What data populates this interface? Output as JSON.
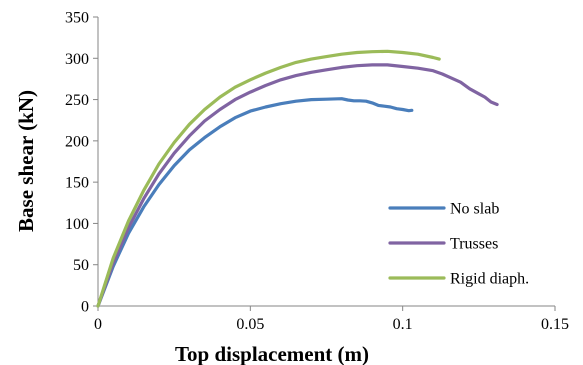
{
  "chart_data": {
    "type": "line",
    "title": "",
    "xlabel": "Top displacement (m)",
    "ylabel": "Base shear (kN)",
    "xlim": [
      0,
      0.15
    ],
    "ylim": [
      0,
      350
    ],
    "xticks": [
      0,
      0.05,
      0.1,
      0.15
    ],
    "xtick_labels": [
      "0",
      "0.05",
      "0.1",
      "0.15"
    ],
    "yticks": [
      0,
      50,
      100,
      150,
      200,
      250,
      300,
      350
    ],
    "ytick_labels": [
      "0",
      "50",
      "100",
      "150",
      "200",
      "250",
      "300",
      "350"
    ],
    "grid": false,
    "legend": {
      "position": "bottom-right"
    },
    "series": [
      {
        "name": "No slab",
        "color": "#4a7ebb",
        "x": [
          0,
          0.005,
          0.01,
          0.015,
          0.02,
          0.025,
          0.03,
          0.035,
          0.04,
          0.045,
          0.05,
          0.055,
          0.06,
          0.065,
          0.07,
          0.075,
          0.08,
          0.082,
          0.084,
          0.086,
          0.088,
          0.09,
          0.092,
          0.094,
          0.096,
          0.098,
          0.1,
          0.102,
          0.103
        ],
        "y": [
          0,
          48,
          88,
          120,
          147,
          170,
          189,
          204,
          217,
          228,
          236,
          241,
          245,
          248,
          250,
          250.5,
          251,
          249.5,
          248.5,
          248.5,
          248,
          246,
          243,
          242,
          241,
          239,
          238,
          236.5,
          237
        ]
      },
      {
        "name": "Trusses",
        "color": "#8064a2",
        "x": [
          0,
          0.005,
          0.01,
          0.015,
          0.02,
          0.025,
          0.03,
          0.035,
          0.04,
          0.045,
          0.05,
          0.055,
          0.06,
          0.065,
          0.07,
          0.075,
          0.08,
          0.085,
          0.09,
          0.095,
          0.1,
          0.105,
          0.11,
          0.113,
          0.116,
          0.119,
          0.122,
          0.125,
          0.127,
          0.129,
          0.131
        ],
        "y": [
          0,
          52,
          95,
          130,
          160,
          185,
          206,
          224,
          238,
          250,
          259,
          267,
          274,
          279,
          283,
          286,
          289,
          291,
          292,
          292,
          290,
          288,
          285,
          281,
          276,
          271,
          263,
          257,
          253,
          247,
          244
        ]
      },
      {
        "name": "Rigid diaph.",
        "color": "#9bbb59",
        "x": [
          0,
          0.005,
          0.01,
          0.015,
          0.02,
          0.025,
          0.03,
          0.035,
          0.04,
          0.045,
          0.05,
          0.055,
          0.06,
          0.065,
          0.07,
          0.075,
          0.08,
          0.085,
          0.09,
          0.095,
          0.1,
          0.105,
          0.11,
          0.112
        ],
        "y": [
          0,
          58,
          103,
          140,
          172,
          198,
          220,
          238,
          253,
          265,
          274,
          282,
          289,
          295,
          299,
          302,
          305,
          307,
          308,
          308.5,
          307,
          305,
          301,
          299
        ]
      }
    ]
  }
}
